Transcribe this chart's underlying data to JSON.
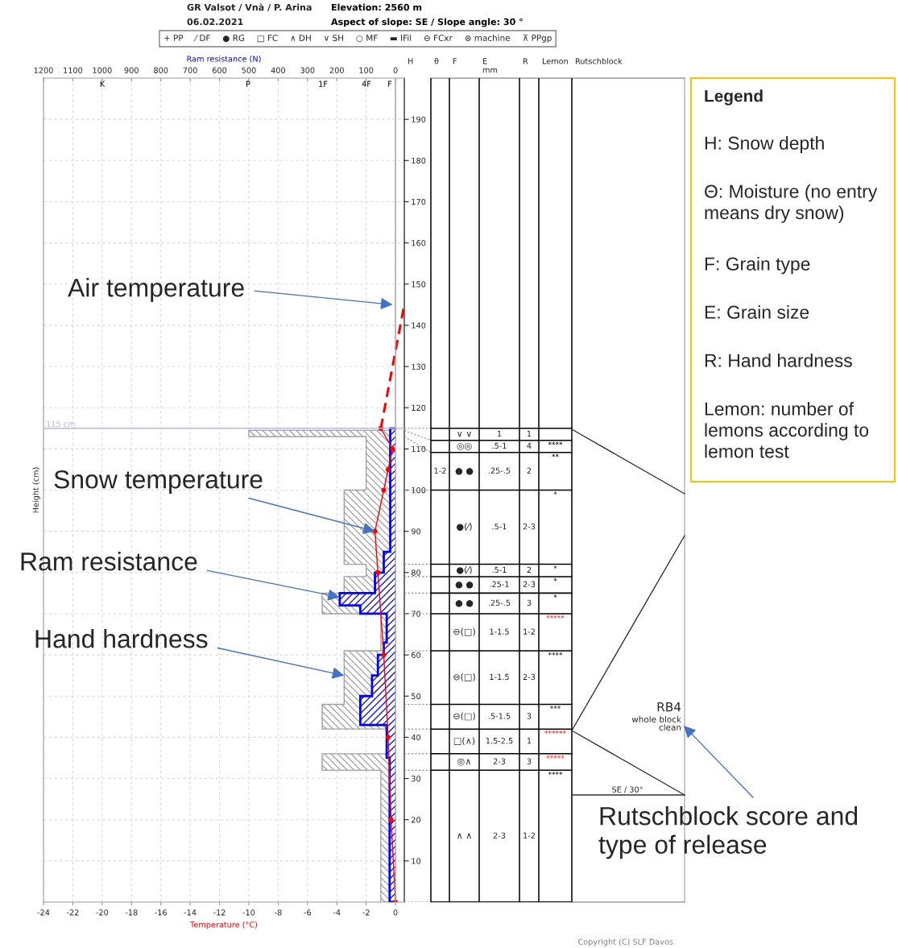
{
  "chart_data": [
    {
      "type": "line",
      "title": "GR Valsot / Vnà / P. Arina",
      "subtitle": "06.02.2021",
      "xlabel": "Temperature (°C)",
      "ylabel": "Height (cm)",
      "x2label": "Ram resistance (N)",
      "orientation": "horizontal",
      "xlim": [
        -24,
        0.6
      ],
      "xticks": [
        -24,
        -22,
        -20,
        -18,
        -16,
        -14,
        -12,
        -10,
        -8,
        -6,
        -4,
        -2,
        0
      ],
      "x2lim": [
        1200,
        -30
      ],
      "x2ticks": [
        1200,
        1100,
        1000,
        900,
        800,
        700,
        600,
        500,
        400,
        300,
        200,
        100,
        0
      ],
      "ylim": [
        0,
        200
      ],
      "yticks": [
        10,
        20,
        30,
        40,
        50,
        60,
        70,
        80,
        90,
        100,
        110,
        120,
        130,
        140,
        150,
        160,
        170,
        180,
        190
      ],
      "grid": true,
      "series": [
        {
          "type": "histogram",
          "axis": "x2",
          "color": "#a0a0a0",
          "bins": [
            0,
            32,
            36,
            42,
            48,
            61,
            70,
            75,
            79,
            82,
            100,
            113,
            114.5,
            115
          ],
          "values": [
            50,
            250,
            null,
            250,
            175,
            50,
            250,
            175,
            100,
            175,
            100,
            500,
            null
          ]
        },
        {
          "type": "histogram",
          "axis": "x2",
          "color": "#0000ff",
          "bins": [
            0,
            35,
            43,
            50,
            55,
            60,
            63,
            70,
            72,
            75,
            80,
            85,
            115
          ],
          "values": [
            20,
            30,
            120,
            80,
            60,
            40,
            30,
            120,
            190,
            70,
            40,
            18
          ]
        },
        {
          "type": "line",
          "color": "#ff0000",
          "marker": "circle",
          "x": [
            115,
            110,
            105,
            100,
            90,
            80,
            60,
            40,
            20,
            0
          ],
          "values": [
            -1.0,
            -0.2,
            -0.5,
            -0.8,
            -1.4,
            -1.2,
            -0.8,
            -0.5,
            -0.3,
            0
          ]
        },
        {
          "type": "line",
          "color": "#ff0000",
          "line_style": "dashed",
          "x": [
            115,
            145
          ],
          "values": [
            -1.0,
            0.6
          ]
        }
      ],
      "ref_lines": [
        {
          "axis": "y",
          "value": 115,
          "label": "115 cm",
          "color": "#b4b4ff"
        },
        {
          "axis": "x",
          "value": 0,
          "color": "#a0a0a0"
        }
      ],
      "annotations": [
        {
          "text": "Air temperature",
          "x": -0.2,
          "y": 145
        },
        {
          "text": "Snow temperature",
          "x": -1.4,
          "y": 90
        },
        {
          "text": "Ram resistance",
          "x": -3.8,
          "y": 74
        },
        {
          "text": "Hand hardness",
          "x": -3.5,
          "y": 55
        },
        "K",
        "P",
        "1F",
        "4F",
        "F",
        "Elevation: 2560 m",
        "Aspect of slope: SE / Slope angle: 30 °",
        "Copyright (C) SLF Davos"
      ]
    },
    {
      "type": "other",
      "annotations": [
        "+ PP",
        "⁄ DF",
        "● RG",
        "□ FC",
        "∧ DH",
        "∨ SH",
        "○ MF",
        "▬ IFil",
        "⊖ FCxr",
        "⊛ machine",
        "⊼ PPgp"
      ]
    },
    {
      "type": "other",
      "categories": [
        "H",
        "θ",
        "F",
        "E\nmm",
        "R",
        "Lemon",
        "Rutschblock"
      ],
      "cell_labels": [
        [
          null,
          "∨ ∨",
          "1",
          "1",
          null
        ],
        [
          null,
          "◎◎",
          ".5-1",
          "4",
          "****"
        ],
        [
          "1-2",
          "● ●",
          ".25-.5",
          "2",
          "**"
        ],
        [
          null,
          "●(⁄)",
          ".5-1",
          "2-3",
          "*"
        ],
        [
          null,
          "●(⁄)",
          ".5-1",
          "2",
          "*"
        ],
        [
          null,
          "● ●",
          ".25-1",
          "2-3",
          "*"
        ],
        [
          null,
          "● ●",
          ".25-.5",
          "3",
          "*"
        ],
        [
          null,
          "⊖(□)",
          "1-1.5",
          "1-2",
          "*****"
        ],
        [
          null,
          "⊖(□)",
          "1-1.5",
          "2-3",
          "****"
        ],
        [
          null,
          "⊖(□)",
          ".5-1.5",
          "3",
          "***"
        ],
        [
          null,
          "□(∧)",
          "1.5-2.5",
          "1",
          "******"
        ],
        [
          null,
          "◎∧",
          "2-3",
          "3",
          "*****"
        ],
        [
          null,
          "∧ ∧",
          "2-3",
          "1-2",
          "****"
        ]
      ],
      "colors": [
        null,
        "#000000",
        "#000000",
        "#000000",
        "#000000",
        "#000000",
        "#000000",
        "#ff0000",
        "#000000",
        "#000000",
        "#ff0000",
        "#ff0000",
        "#000000"
      ],
      "annotations": [
        "RB4",
        "whole block",
        "clean",
        "SE / 30°",
        "Rutschblock score and type of release"
      ]
    },
    {
      "type": "other",
      "title": "Legend",
      "annotations": [
        "H: Snow depth",
        "Θ: Moisture (no entry means dry snow)",
        "F: Grain type",
        "E: Grain size",
        "R: Hand hardness",
        "Lemon: number of lemons according to lemon test"
      ]
    }
  ]
}
